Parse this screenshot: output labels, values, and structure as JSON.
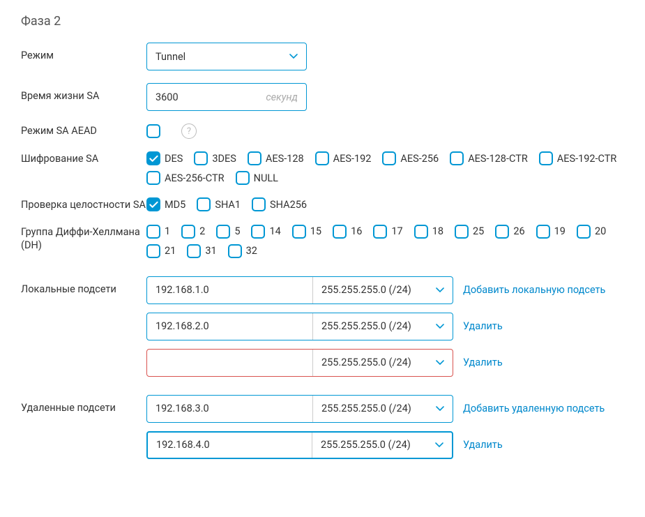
{
  "section_title": "Фаза 2",
  "mode": {
    "label": "Режим",
    "value": "Tunnel"
  },
  "sa_lifetime": {
    "label": "Время жизни SA",
    "value": "3600",
    "suffix": "секунд"
  },
  "sa_aead": {
    "label": "Режим SA AEAD"
  },
  "sa_encryption": {
    "label": "Шифрование SA",
    "options": [
      {
        "label": "DES",
        "checked": true
      },
      {
        "label": "3DES",
        "checked": false
      },
      {
        "label": "AES-128",
        "checked": false
      },
      {
        "label": "AES-192",
        "checked": false
      },
      {
        "label": "AES-256",
        "checked": false
      },
      {
        "label": "AES-128-CTR",
        "checked": false
      },
      {
        "label": "AES-192-CTR",
        "checked": false
      },
      {
        "label": "AES-256-CTR",
        "checked": false
      },
      {
        "label": "NULL",
        "checked": false
      }
    ]
  },
  "sa_integrity": {
    "label": "Проверка целостности SA",
    "options": [
      {
        "label": "MD5",
        "checked": true
      },
      {
        "label": "SHA1",
        "checked": false
      },
      {
        "label": "SHA256",
        "checked": false
      }
    ]
  },
  "dh_group": {
    "label": "Группа Диффи-Хеллмана (DH)",
    "options": [
      {
        "label": "1"
      },
      {
        "label": "2"
      },
      {
        "label": "5"
      },
      {
        "label": "14"
      },
      {
        "label": "15"
      },
      {
        "label": "16"
      },
      {
        "label": "17"
      },
      {
        "label": "18"
      },
      {
        "label": "25"
      },
      {
        "label": "26"
      },
      {
        "label": "19"
      },
      {
        "label": "20"
      },
      {
        "label": "21"
      },
      {
        "label": "31"
      },
      {
        "label": "32"
      }
    ]
  },
  "local_subnets": {
    "label": "Локальные подсети",
    "add_label": "Добавить локальную подсеть",
    "delete_label": "Удалить",
    "rows": [
      {
        "ip": "192.168.1.0",
        "mask": "255.255.255.0 (/24)",
        "action": "add",
        "state": "normal"
      },
      {
        "ip": "192.168.2.0",
        "mask": "255.255.255.0 (/24)",
        "action": "delete",
        "state": "normal"
      },
      {
        "ip": "",
        "mask": "255.255.255.0 (/24)",
        "action": "delete",
        "state": "error"
      }
    ]
  },
  "remote_subnets": {
    "label": "Удаленные подсети",
    "add_label": "Добавить удаленную подсеть",
    "delete_label": "Удалить",
    "rows": [
      {
        "ip": "192.168.3.0",
        "mask": "255.255.255.0 (/24)",
        "action": "add",
        "state": "normal"
      },
      {
        "ip": "192.168.4.0",
        "mask": "255.255.255.0 (/24)",
        "action": "delete",
        "state": "focus"
      }
    ]
  },
  "colors": {
    "accent": "#0097d4",
    "link": "#0088cc",
    "error": "#d9534f"
  }
}
